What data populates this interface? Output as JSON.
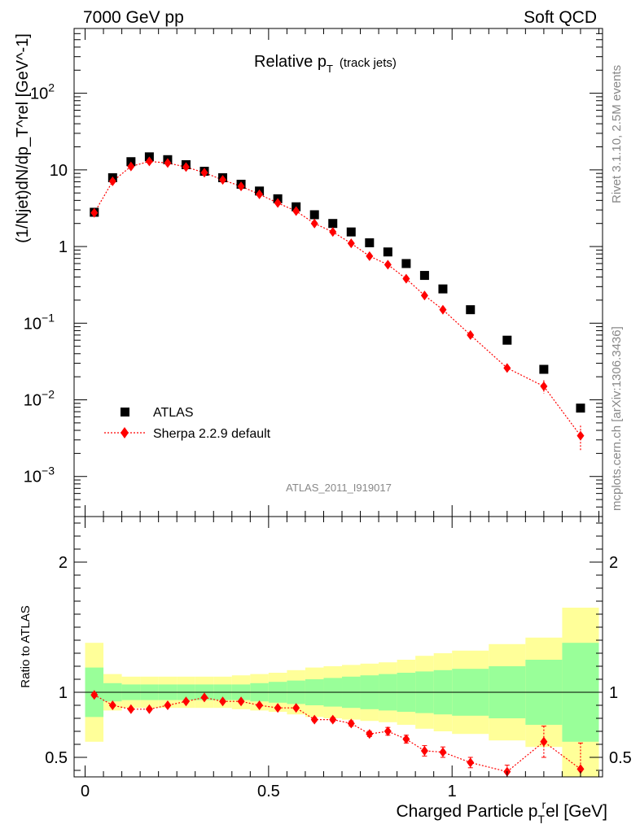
{
  "header": {
    "left": "7000 GeV pp",
    "right": "Soft QCD"
  },
  "side_labels": {
    "rivet": "Rivet 3.1.10,  2.5M events",
    "mcplots": "mcplots.cern.ch [arXiv:1306.3436]"
  },
  "colors": {
    "data": "#000000",
    "mc": "#ff0000",
    "band_inner": "#99ff99",
    "band_outer": "#ffff99",
    "grey_text": "#888888"
  },
  "chart_data": [
    {
      "type": "scatter",
      "title": "Relative p_T (track jets)",
      "title_main": "Relative p",
      "title_sub": "T",
      "title_note": "(track jets)",
      "analysis_id": "ATLAS_2011_I919017",
      "ylabel": "(1/Njet)dN/dp_T^rel [GeV^-1]",
      "yscale": "log",
      "ylim": [
        0.0003,
        700
      ],
      "xlim": [
        -0.03,
        1.41
      ],
      "y_ticks": [
        {
          "value": 0.001,
          "label": "10",
          "exp": "−3"
        },
        {
          "value": 0.01,
          "label": "10",
          "exp": "−2"
        },
        {
          "value": 0.1,
          "label": "10",
          "exp": "−1"
        },
        {
          "value": 1,
          "label": "1",
          "exp": ""
        },
        {
          "value": 10,
          "label": "10",
          "exp": ""
        },
        {
          "value": 100,
          "label": "10",
          "exp": "2"
        }
      ],
      "legend": {
        "placement": "bottom-left",
        "entries": [
          "ATLAS",
          "Sherpa 2.2.9 default"
        ]
      },
      "series": [
        {
          "name": "ATLAS",
          "marker": "square",
          "x": [
            0.025,
            0.075,
            0.125,
            0.175,
            0.225,
            0.275,
            0.325,
            0.375,
            0.425,
            0.475,
            0.525,
            0.575,
            0.625,
            0.675,
            0.725,
            0.775,
            0.825,
            0.875,
            0.925,
            0.975,
            1.05,
            1.15,
            1.25,
            1.35
          ],
          "y": [
            2.8,
            7.9,
            12.8,
            14.8,
            13.6,
            11.7,
            9.6,
            7.9,
            6.5,
            5.3,
            4.2,
            3.3,
            2.6,
            2.0,
            1.55,
            1.12,
            0.85,
            0.6,
            0.42,
            0.28,
            0.15,
            0.06,
            0.025,
            0.0078
          ]
        },
        {
          "name": "Sherpa 2.2.9 default",
          "marker": "diamond",
          "x": [
            0.025,
            0.075,
            0.125,
            0.175,
            0.225,
            0.275,
            0.325,
            0.375,
            0.425,
            0.475,
            0.525,
            0.575,
            0.625,
            0.675,
            0.725,
            0.775,
            0.825,
            0.875,
            0.925,
            0.975,
            1.05,
            1.15,
            1.25,
            1.35
          ],
          "y": [
            2.75,
            7.1,
            11.1,
            12.9,
            12.3,
            10.9,
            9.2,
            7.4,
            6.1,
            4.8,
            3.7,
            2.9,
            2.0,
            1.55,
            1.1,
            0.75,
            0.58,
            0.38,
            0.23,
            0.15,
            0.07,
            0.026,
            0.015,
            0.0034
          ],
          "yerr": [
            0,
            0,
            0,
            0,
            0,
            0,
            0,
            0,
            0,
            0,
            0,
            0,
            0,
            0,
            0,
            0,
            0,
            0,
            0,
            0,
            0.005,
            0.003,
            0.003,
            0.0012
          ]
        }
      ]
    },
    {
      "type": "line",
      "ylabel": "Ratio to ATLAS",
      "xlabel": "Charged Particle p_T^rel [GeV]",
      "xlabel_main": "Charged Particle p",
      "xlabel_sub": "T",
      "xlabel_sup": "r",
      "xlabel_tail": "el [GeV]",
      "ylim": [
        0.35,
        2.35
      ],
      "xlim": [
        -0.03,
        1.41
      ],
      "x_ticks": [
        {
          "value": 0,
          "label": "0"
        },
        {
          "value": 0.5,
          "label": "0.5"
        },
        {
          "value": 1,
          "label": "1"
        }
      ],
      "y_ticks": [
        {
          "value": 0.5,
          "label": "0.5"
        },
        {
          "value": 1,
          "label": "1"
        },
        {
          "value": 2,
          "label": "2"
        }
      ],
      "bins": [
        0,
        0.05,
        0.1,
        0.15,
        0.2,
        0.25,
        0.3,
        0.35,
        0.4,
        0.45,
        0.5,
        0.55,
        0.6,
        0.65,
        0.7,
        0.75,
        0.8,
        0.85,
        0.9,
        0.95,
        1.0,
        1.1,
        1.2,
        1.3,
        1.4
      ],
      "band_inner": [
        0.19,
        0.07,
        0.06,
        0.06,
        0.06,
        0.06,
        0.06,
        0.06,
        0.06,
        0.07,
        0.08,
        0.09,
        0.1,
        0.11,
        0.12,
        0.13,
        0.14,
        0.15,
        0.16,
        0.17,
        0.18,
        0.2,
        0.25,
        0.38,
        0.4
      ],
      "band_outer": [
        0.38,
        0.14,
        0.12,
        0.12,
        0.12,
        0.12,
        0.12,
        0.12,
        0.13,
        0.14,
        0.15,
        0.17,
        0.19,
        0.2,
        0.21,
        0.22,
        0.23,
        0.25,
        0.28,
        0.3,
        0.32,
        0.37,
        0.42,
        0.65,
        0.68
      ],
      "series": [
        {
          "name": "Sherpa 2.2.9 default",
          "x": [
            0.025,
            0.075,
            0.125,
            0.175,
            0.225,
            0.275,
            0.325,
            0.375,
            0.425,
            0.475,
            0.525,
            0.575,
            0.625,
            0.675,
            0.725,
            0.775,
            0.825,
            0.875,
            0.925,
            0.975,
            1.05,
            1.15,
            1.25,
            1.35
          ],
          "y": [
            0.98,
            0.9,
            0.87,
            0.87,
            0.9,
            0.93,
            0.96,
            0.93,
            0.93,
            0.9,
            0.88,
            0.88,
            0.79,
            0.79,
            0.76,
            0.68,
            0.7,
            0.64,
            0.55,
            0.54,
            0.46,
            0.39,
            0.62,
            0.41
          ],
          "yerr": [
            0.015,
            0.01,
            0.01,
            0.01,
            0.01,
            0.01,
            0.01,
            0.01,
            0.01,
            0.01,
            0.01,
            0.01,
            0.015,
            0.015,
            0.02,
            0.02,
            0.03,
            0.03,
            0.04,
            0.04,
            0.04,
            0.05,
            0.12,
            0.2
          ]
        }
      ]
    }
  ]
}
